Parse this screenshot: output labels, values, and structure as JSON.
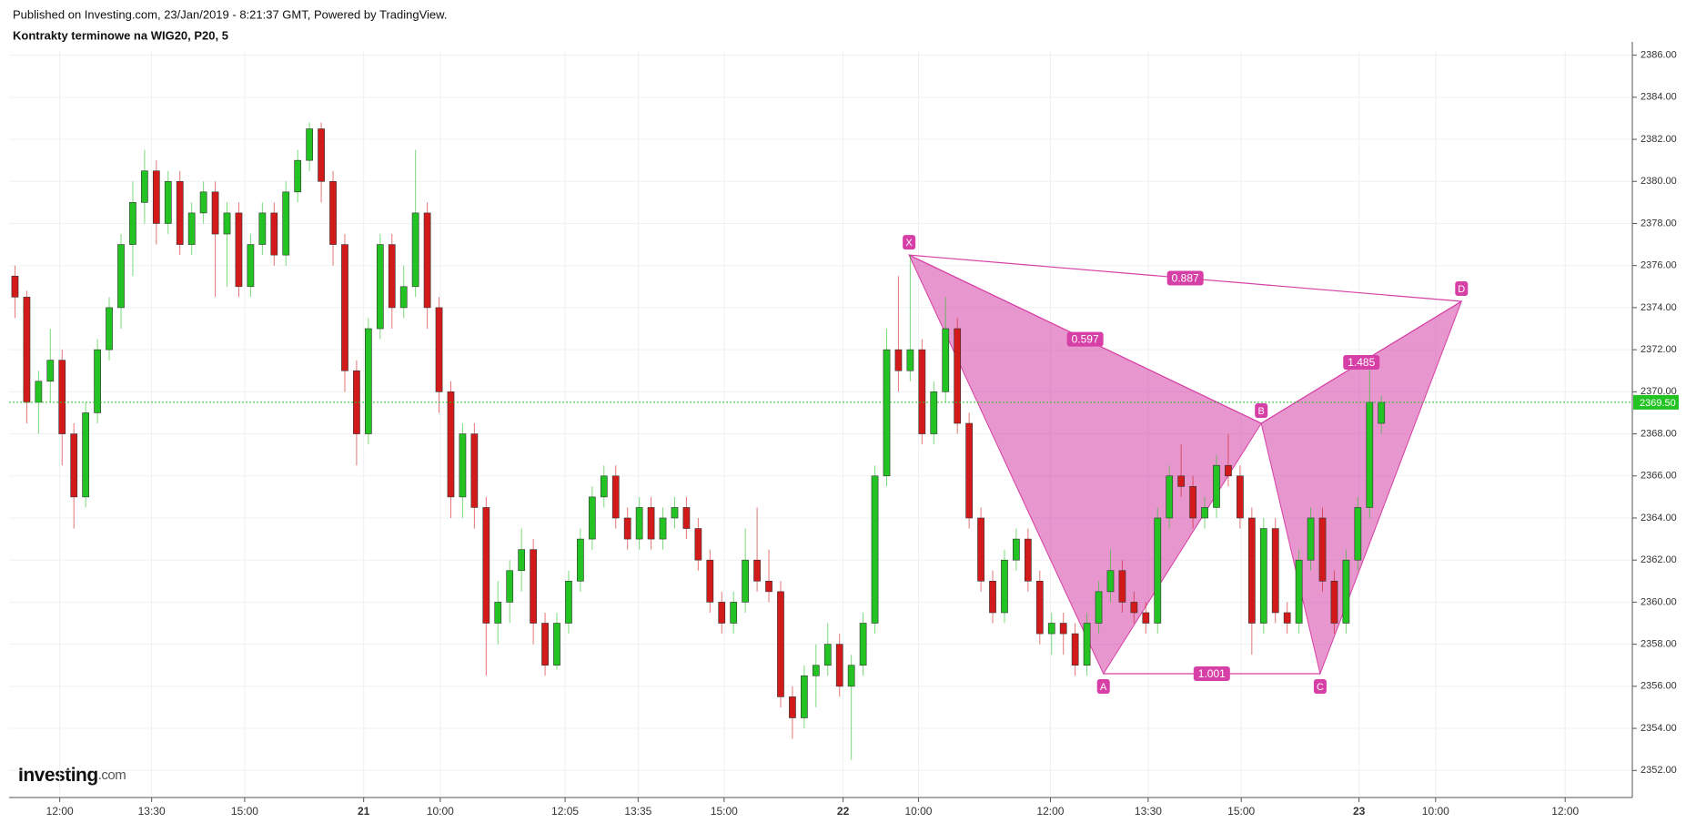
{
  "chart_data": {
    "type": "candlestick",
    "header": "Published on Investing.com, 23/Jan/2019 - 8:21:37 GMT, Powered by TradingView.",
    "title": "Kontrakty terminowe na WIG20, P20, 5",
    "logo": "Investing",
    "logo_suffix": ".com",
    "up_color": "#22c322",
    "down_color": "#d21a1a",
    "xlim": [
      -0.5,
      137.3
    ],
    "ylim": [
      2350.8,
      2386.2
    ],
    "xticks": [
      {
        "value": 3.8,
        "label": "12:00"
      },
      {
        "value": 11.6,
        "label": "13:30"
      },
      {
        "value": 19.5,
        "label": "15:00"
      },
      {
        "value": 29.6,
        "label": "21"
      },
      {
        "value": 36.1,
        "label": "10:00"
      },
      {
        "value": 46.7,
        "label": "12:05"
      },
      {
        "value": 52.9,
        "label": "13:35"
      },
      {
        "value": 60.2,
        "label": "15:00"
      },
      {
        "value": 70.3,
        "label": "22"
      },
      {
        "value": 76.7,
        "label": "10:00"
      },
      {
        "value": 87.9,
        "label": "12:00"
      },
      {
        "value": 96.2,
        "label": "13:30"
      },
      {
        "value": 104.1,
        "label": "15:00"
      },
      {
        "value": 114.1,
        "label": "23"
      },
      {
        "value": 120.6,
        "label": "10:00"
      },
      {
        "value": 131.6,
        "label": "12:00"
      }
    ],
    "yticks": [
      {
        "value": 2352,
        "label": "2352.00"
      },
      {
        "value": 2354,
        "label": "2354.00"
      },
      {
        "value": 2356,
        "label": "2356.00"
      },
      {
        "value": 2358,
        "label": "2358.00"
      },
      {
        "value": 2360,
        "label": "2360.00"
      },
      {
        "value": 2362,
        "label": "2362.00"
      },
      {
        "value": 2364,
        "label": "2364.00"
      },
      {
        "value": 2366,
        "label": "2366.00"
      },
      {
        "value": 2368,
        "label": "2368.00"
      },
      {
        "value": 2370,
        "label": "2370.00"
      },
      {
        "value": 2372,
        "label": "2372.00"
      },
      {
        "value": 2374,
        "label": "2374.00"
      },
      {
        "value": 2376,
        "label": "2376.00"
      },
      {
        "value": 2378,
        "label": "2378.00"
      },
      {
        "value": 2380,
        "label": "2380.00"
      },
      {
        "value": 2382,
        "label": "2382.00"
      },
      {
        "value": 2384,
        "label": "2384.00"
      },
      {
        "value": 2386,
        "label": "2386.00"
      }
    ],
    "grid": true,
    "last_price": {
      "value": 2369.5,
      "label": "2369.50"
    },
    "pattern": {
      "color": "#d63fa5",
      "points": [
        {
          "label": "X",
          "x": 75.9,
          "y": 2376.5
        },
        {
          "label": "A",
          "x": 92.4,
          "y": 2356.6
        },
        {
          "label": "B",
          "x": 105.8,
          "y": 2368.5
        },
        {
          "label": "C",
          "x": 110.8,
          "y": 2356.6
        },
        {
          "label": "D",
          "x": 122.8,
          "y": 2374.3
        }
      ],
      "ratios": [
        "0.887",
        "0.597",
        "1.485",
        "1.001"
      ]
    },
    "candles": [
      [
        2375.5,
        2376,
        2373.5,
        2374.5
      ],
      [
        2374.5,
        2374.8,
        2368.5,
        2369.5
      ],
      [
        2369.5,
        2371,
        2368,
        2370.5
      ],
      [
        2370.5,
        2373,
        2369.5,
        2371.5
      ],
      [
        2371.5,
        2372,
        2366.5,
        2368
      ],
      [
        2368,
        2368.5,
        2363.5,
        2365
      ],
      [
        2365,
        2369.5,
        2364.5,
        2369
      ],
      [
        2369,
        2372.5,
        2368.5,
        2372
      ],
      [
        2372,
        2374.5,
        2371.5,
        2374
      ],
      [
        2374,
        2377.5,
        2373,
        2377
      ],
      [
        2377,
        2380,
        2375.5,
        2379
      ],
      [
        2379,
        2381.5,
        2378,
        2380.5
      ],
      [
        2380.5,
        2381,
        2377,
        2378
      ],
      [
        2378,
        2380.5,
        2377.5,
        2380
      ],
      [
        2380,
        2380.5,
        2376.5,
        2377
      ],
      [
        2377,
        2379,
        2376.5,
        2378.5
      ],
      [
        2378.5,
        2380,
        2378,
        2379.5
      ],
      [
        2379.5,
        2380,
        2374.5,
        2377.5
      ],
      [
        2377.5,
        2379,
        2375,
        2378.5
      ],
      [
        2378.5,
        2379,
        2374.5,
        2375
      ],
      [
        2375,
        2377.5,
        2374.5,
        2377
      ],
      [
        2377,
        2379,
        2376.5,
        2378.5
      ],
      [
        2378.5,
        2379,
        2376,
        2376.5
      ],
      [
        2376.5,
        2380,
        2376,
        2379.5
      ],
      [
        2379.5,
        2381.5,
        2379,
        2381
      ],
      [
        2381,
        2382.8,
        2380.5,
        2382.5
      ],
      [
        2382.5,
        2382.8,
        2379,
        2380
      ],
      [
        2380,
        2380.5,
        2376,
        2377
      ],
      [
        2377,
        2377.5,
        2370,
        2371
      ],
      [
        2371,
        2371.5,
        2366.5,
        2368
      ],
      [
        2368,
        2373.5,
        2367.5,
        2373
      ],
      [
        2373,
        2377.5,
        2372.5,
        2377
      ],
      [
        2377,
        2377.5,
        2373,
        2374
      ],
      [
        2374,
        2376,
        2373.5,
        2375
      ],
      [
        2375,
        2381.5,
        2374.5,
        2378.5
      ],
      [
        2378.5,
        2379,
        2373,
        2374
      ],
      [
        2374,
        2374.5,
        2369,
        2370
      ],
      [
        2370,
        2370.5,
        2364,
        2365
      ],
      [
        2365,
        2368.5,
        2364,
        2368
      ],
      [
        2368,
        2368.5,
        2363.5,
        2364.5
      ],
      [
        2364.5,
        2365,
        2356.5,
        2359
      ],
      [
        2359,
        2361,
        2358,
        2360
      ],
      [
        2360,
        2362,
        2359,
        2361.5
      ],
      [
        2361.5,
        2363.5,
        2360.5,
        2362.5
      ],
      [
        2362.5,
        2363,
        2358,
        2359
      ],
      [
        2359,
        2359.5,
        2356.5,
        2357
      ],
      [
        2357,
        2359.5,
        2356.8,
        2359
      ],
      [
        2359,
        2361.5,
        2358.5,
        2361
      ],
      [
        2361,
        2363.5,
        2360.5,
        2363
      ],
      [
        2363,
        2365.5,
        2362.5,
        2365
      ],
      [
        2365,
        2366.5,
        2364.5,
        2366
      ],
      [
        2366,
        2366.5,
        2363.5,
        2364
      ],
      [
        2364,
        2364.5,
        2362.5,
        2363
      ],
      [
        2363,
        2365,
        2362.5,
        2364.5
      ],
      [
        2364.5,
        2365,
        2362.5,
        2363
      ],
      [
        2363,
        2364.5,
        2362.5,
        2364
      ],
      [
        2364,
        2365,
        2363.5,
        2364.5
      ],
      [
        2364.5,
        2365,
        2363,
        2363.5
      ],
      [
        2363.5,
        2364,
        2361.5,
        2362
      ],
      [
        2362,
        2362.5,
        2359.5,
        2360
      ],
      [
        2360,
        2360.5,
        2358.5,
        2359
      ],
      [
        2359,
        2360.5,
        2358.5,
        2360
      ],
      [
        2360,
        2363.5,
        2359.5,
        2362
      ],
      [
        2362,
        2364.5,
        2360.5,
        2361
      ],
      [
        2361,
        2362.5,
        2360,
        2360.5
      ],
      [
        2360.5,
        2361,
        2355,
        2355.5
      ],
      [
        2355.5,
        2356,
        2353.5,
        2354.5
      ],
      [
        2354.5,
        2357,
        2354,
        2356.5
      ],
      [
        2356.5,
        2358,
        2355,
        2357
      ],
      [
        2357,
        2359,
        2356.5,
        2358
      ],
      [
        2358,
        2358.5,
        2355.5,
        2356
      ],
      [
        2356,
        2357.5,
        2352.5,
        2357
      ],
      [
        2357,
        2359.5,
        2356.5,
        2359
      ],
      [
        2359,
        2366.5,
        2358.5,
        2366
      ],
      [
        2366,
        2373,
        2365.5,
        2372
      ],
      [
        2372,
        2375.5,
        2370,
        2371
      ],
      [
        2371,
        2376.5,
        2370.5,
        2372
      ],
      [
        2372,
        2372.5,
        2367.5,
        2368
      ],
      [
        2368,
        2370.5,
        2367.5,
        2370
      ],
      [
        2370,
        2374.5,
        2369.5,
        2373
      ],
      [
        2373,
        2373.5,
        2368,
        2368.5
      ],
      [
        2368.5,
        2369,
        2363.5,
        2364
      ],
      [
        2364,
        2364.5,
        2360.5,
        2361
      ],
      [
        2361,
        2361.5,
        2359,
        2359.5
      ],
      [
        2359.5,
        2362.5,
        2359,
        2362
      ],
      [
        2362,
        2363.5,
        2361.5,
        2363
      ],
      [
        2363,
        2363.5,
        2360.5,
        2361
      ],
      [
        2361,
        2361.5,
        2358,
        2358.5
      ],
      [
        2358.5,
        2359.5,
        2357.5,
        2359
      ],
      [
        2359,
        2359.5,
        2357.5,
        2358.5
      ],
      [
        2358.5,
        2359,
        2356.5,
        2357
      ],
      [
        2357,
        2359.5,
        2356.5,
        2359
      ],
      [
        2359,
        2361,
        2358.5,
        2360.5
      ],
      [
        2360.5,
        2362.5,
        2360,
        2361.5
      ],
      [
        2361.5,
        2362,
        2359.5,
        2360
      ],
      [
        2360,
        2360.5,
        2359,
        2359.5
      ],
      [
        2359.5,
        2360,
        2358.5,
        2359
      ],
      [
        2359,
        2364.5,
        2358.5,
        2364
      ],
      [
        2364,
        2366.5,
        2363.5,
        2366
      ],
      [
        2366,
        2367.5,
        2365,
        2365.5
      ],
      [
        2365.5,
        2366,
        2363.5,
        2364
      ],
      [
        2364,
        2365,
        2363.5,
        2364.5
      ],
      [
        2364.5,
        2367,
        2364,
        2366.5
      ],
      [
        2366.5,
        2368,
        2365.5,
        2366
      ],
      [
        2366,
        2366.5,
        2363.5,
        2364
      ],
      [
        2364,
        2364.5,
        2357.5,
        2359
      ],
      [
        2359,
        2364,
        2358.5,
        2363.5
      ],
      [
        2363.5,
        2364,
        2359,
        2359.5
      ],
      [
        2359.5,
        2360,
        2358.5,
        2359
      ],
      [
        2359,
        2362.5,
        2358.5,
        2362
      ],
      [
        2362,
        2364.5,
        2361.5,
        2364
      ],
      [
        2364,
        2364.5,
        2360.5,
        2361
      ],
      [
        2361,
        2361.5,
        2358.5,
        2359
      ],
      [
        2359,
        2362.5,
        2358.5,
        2362
      ],
      [
        2362,
        2365,
        2361.5,
        2364.5
      ],
      [
        2364.5,
        2371.5,
        2364,
        2369.5
      ],
      [
        2368.5,
        2369.8,
        2368,
        2369.5
      ]
    ]
  }
}
